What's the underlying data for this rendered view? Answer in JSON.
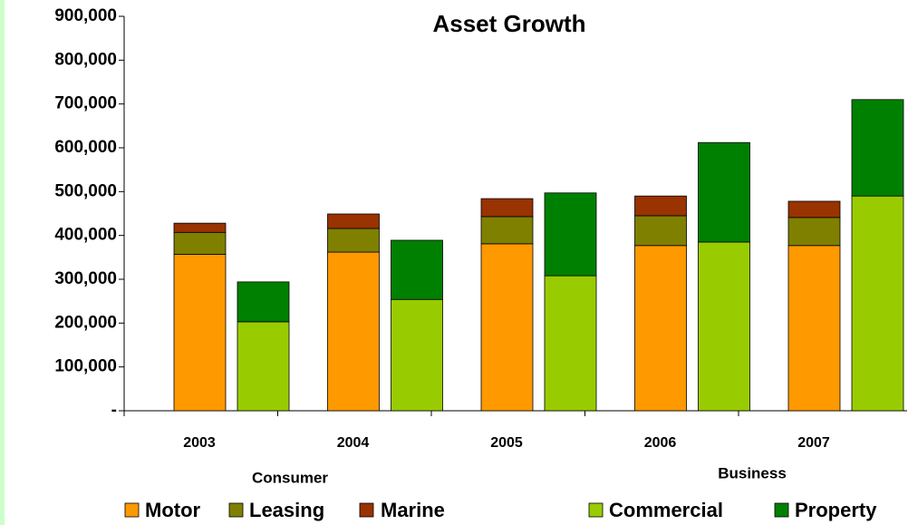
{
  "chart_data": {
    "type": "grouped-stacked-bar",
    "title": "Asset Growth",
    "categories": [
      "2003",
      "2004",
      "2005",
      "2006",
      "2007"
    ],
    "ylim": [
      0,
      900000
    ],
    "yticks": [
      {
        "value": 0,
        "label": "-"
      },
      {
        "value": 100000,
        "label": "100,000"
      },
      {
        "value": 200000,
        "label": "200,000"
      },
      {
        "value": 300000,
        "label": "300,000"
      },
      {
        "value": 400000,
        "label": "400,000"
      },
      {
        "value": 500000,
        "label": "500,000"
      },
      {
        "value": 600000,
        "label": "600,000"
      },
      {
        "value": 700000,
        "label": "700,000"
      },
      {
        "value": 800000,
        "label": "800,000"
      },
      {
        "value": 900000,
        "label": "900,000"
      }
    ],
    "stacks": [
      {
        "name": "Consumer",
        "series": [
          {
            "name": "Motor",
            "color": "#ff9900",
            "values": [
              357000,
              362000,
              381000,
              377000,
              377000
            ]
          },
          {
            "name": "Leasing",
            "color": "#808000",
            "values": [
              50000,
              54000,
              62000,
              68000,
              64000
            ]
          },
          {
            "name": "Marine",
            "color": "#993300",
            "values": [
              21000,
              33000,
              41000,
              45000,
              37000
            ]
          }
        ]
      },
      {
        "name": "Business",
        "series": [
          {
            "name": "Commercial",
            "color": "#99cc00",
            "values": [
              203000,
              254000,
              308000,
              385000,
              490000
            ]
          },
          {
            "name": "Property",
            "color": "#008000",
            "values": [
              91000,
              135000,
              189000,
              227000,
              220000
            ]
          }
        ]
      }
    ]
  }
}
